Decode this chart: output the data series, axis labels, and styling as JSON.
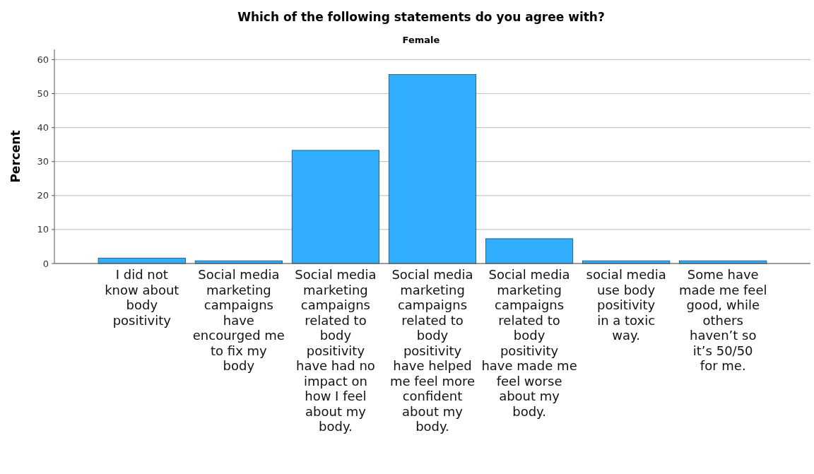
{
  "chart_data": {
    "type": "bar",
    "title": "Which of the following statements do you agree with?",
    "subtitle": "Female",
    "ylabel": "Percent",
    "categories": [
      "I did not know about body positivity",
      "Social media marketing campaigns have encourged me to fix my body",
      "Social media marketing campaigns related to body positivity have had no impact on how I feel about my body.",
      "Social media marketing campaigns related to body positivity have helped me feel more confident about my body.",
      "Social media marketing campaigns related to body positivity have made me feel worse about my body.",
      "social media use body positivity in a toxic way.",
      "Some have made me feel good, while others haven’t so it’s 50/50 for me."
    ],
    "values": [
      1.6,
      0.8,
      33.3,
      55.6,
      7.3,
      0.8,
      0.8
    ],
    "color": "#31adfd",
    "ylim": [
      0,
      63
    ],
    "yticks": [
      0,
      10,
      20,
      30,
      40,
      50,
      60
    ],
    "grid": "y"
  }
}
